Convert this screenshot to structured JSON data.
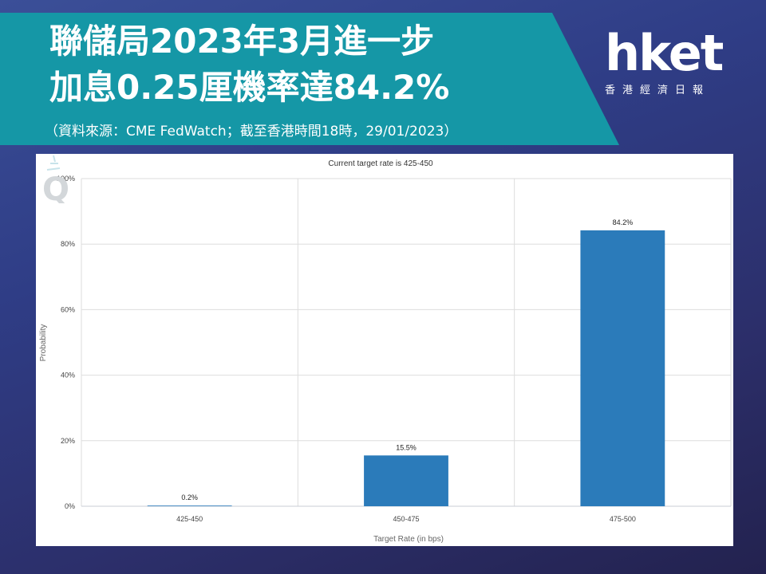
{
  "header": {
    "title_line1": "聯儲局2023年3月進一步",
    "title_line2": "加息0.25厘機率達84.2%",
    "source": "（資料來源：CME FedWatch；截至香港時間18時，29/01/2023）"
  },
  "logo": {
    "word": "hket",
    "subtitle": "香港經濟日報"
  },
  "colors": {
    "banner": "#1597a6",
    "bar": "#2b7bba",
    "grid": "#dddddd"
  },
  "chart_data": {
    "type": "bar",
    "title": "Current target rate is 425-450",
    "xlabel": "Target Rate (in bps)",
    "ylabel": "Probability",
    "categories": [
      "425-450",
      "450-475",
      "475-500"
    ],
    "values": [
      0.2,
      15.5,
      84.2
    ],
    "value_labels": [
      "0.2%",
      "15.5%",
      "84.2%"
    ],
    "ylim": [
      0,
      100
    ],
    "yticks": [
      "0%",
      "20%",
      "40%",
      "60%",
      "80%",
      "100%"
    ],
    "grid": true,
    "legend": "none"
  }
}
